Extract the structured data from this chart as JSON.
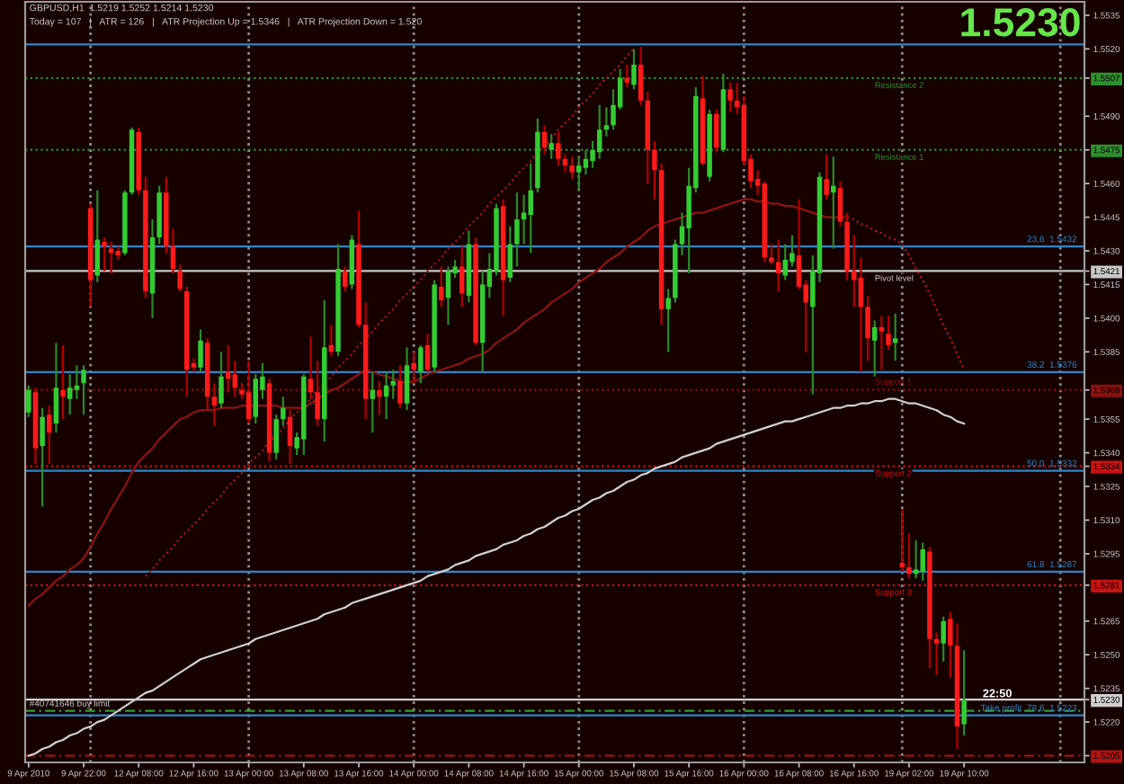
{
  "chart_data": {
    "type": "candlestick",
    "title": "GBPUSD,H1  1.5219 1.5252 1.5214 1.5230",
    "subtitle": "Today = 107   |   ATR = 126   |   ATR Projection Up = 1.5346   |   ATR Projection Down = 1.520",
    "categories": [
      "9 Apr 2010",
      null,
      null,
      null,
      null,
      null,
      null,
      null,
      "9 Apr 22:00",
      null,
      null,
      null,
      null,
      null,
      null,
      null,
      "12 Apr 08:00",
      null,
      null,
      null,
      null,
      null,
      null,
      null,
      "12 Apr 16:00",
      null,
      null,
      null,
      null,
      null,
      null,
      null,
      "13 Apr 00:00",
      null,
      null,
      null,
      null,
      null,
      null,
      null,
      "13 Apr 08:00",
      null,
      null,
      null,
      null,
      null,
      null,
      null,
      "13 Apr 16:00",
      null,
      null,
      null,
      null,
      null,
      null,
      null,
      "14 Apr 00:00",
      null,
      null,
      null,
      null,
      null,
      null,
      null,
      "14 Apr 08:00",
      null,
      null,
      null,
      null,
      null,
      null,
      null,
      "14 Apr 16:00",
      null,
      null,
      null,
      null,
      null,
      null,
      null,
      "15 Apr 00:00",
      null,
      null,
      null,
      null,
      null,
      null,
      null,
      "15 Apr 08:00",
      null,
      null,
      null,
      null,
      null,
      null,
      null,
      "15 Apr 16:00",
      null,
      null,
      null,
      null,
      null,
      null,
      null,
      "16 Apr 00:00",
      null,
      null,
      null,
      null,
      null,
      null,
      null,
      "16 Apr 08:00",
      null,
      null,
      null,
      null,
      null,
      null,
      null,
      "16 Apr 16:00",
      null,
      null,
      null,
      null,
      null,
      null,
      null,
      "19 Apr 02:00",
      null,
      null,
      null,
      null,
      null,
      null,
      null,
      "19 Apr 10:00",
      null,
      null,
      null,
      null,
      null,
      null,
      null,
      null,
      null,
      null,
      null,
      null,
      null,
      null,
      null,
      null,
      null
    ],
    "ohlc": [
      [
        1.5358,
        1.537,
        1.5356,
        1.5368
      ],
      [
        1.5367,
        1.5369,
        1.5335,
        1.5342
      ],
      [
        1.5343,
        1.536,
        1.5316,
        1.5356
      ],
      [
        1.5357,
        1.5361,
        1.5335,
        1.5349
      ],
      [
        1.5353,
        1.5389,
        1.5349,
        1.5369
      ],
      [
        1.5368,
        1.5388,
        1.5355,
        1.5365
      ],
      [
        1.5364,
        1.5375,
        1.5357,
        1.5369
      ],
      [
        1.5368,
        1.5379,
        1.5364,
        1.537
      ],
      [
        1.5371,
        1.5379,
        1.5357,
        1.5377
      ],
      [
        1.5449,
        1.5451,
        1.5405,
        1.5417
      ],
      [
        1.5419,
        1.5457,
        1.5416,
        1.5435
      ],
      [
        1.5434,
        1.5436,
        1.5421,
        1.5432
      ],
      [
        1.5431,
        1.5434,
        1.542,
        1.5429
      ],
      [
        1.543,
        1.5432,
        1.5426,
        1.5428
      ],
      [
        1.5429,
        1.5457,
        1.5428,
        1.5456
      ],
      [
        1.5456,
        1.5485,
        1.5455,
        1.5484
      ],
      [
        1.5483,
        1.5485,
        1.5455,
        1.5457
      ],
      [
        1.5457,
        1.5463,
        1.5409,
        1.5412
      ],
      [
        1.5411,
        1.5444,
        1.54,
        1.5436
      ],
      [
        1.5436,
        1.5459,
        1.5433,
        1.5456
      ],
      [
        1.5456,
        1.5463,
        1.5429,
        1.5432
      ],
      [
        1.5432,
        1.544,
        1.542,
        1.5422
      ],
      [
        1.5421,
        1.5424,
        1.5412,
        1.5413
      ],
      [
        1.5412,
        1.5414,
        1.5365,
        1.5377
      ],
      [
        1.538,
        1.5382,
        1.5376,
        1.5378
      ],
      [
        1.5378,
        1.5395,
        1.5376,
        1.539
      ],
      [
        1.5389,
        1.5391,
        1.5359,
        1.5365
      ],
      [
        1.5365,
        1.5371,
        1.5352,
        1.5361
      ],
      [
        1.5362,
        1.5385,
        1.536,
        1.5374
      ],
      [
        1.5376,
        1.5388,
        1.5367,
        1.5373
      ],
      [
        1.5375,
        1.5381,
        1.5365,
        1.5369
      ],
      [
        1.5368,
        1.5371,
        1.5364,
        1.5366
      ],
      [
        1.5367,
        1.5381,
        1.5353,
        1.5355
      ],
      [
        1.5356,
        1.5375,
        1.5353,
        1.5373
      ],
      [
        1.5368,
        1.538,
        1.5364,
        1.5374
      ],
      [
        1.5371,
        1.5373,
        1.5336,
        1.534
      ],
      [
        1.534,
        1.5357,
        1.5337,
        1.5355
      ],
      [
        1.5355,
        1.5365,
        1.5352,
        1.536
      ],
      [
        1.5356,
        1.5359,
        1.5335,
        1.5343
      ],
      [
        1.5342,
        1.5349,
        1.5339,
        1.5347
      ],
      [
        1.5346,
        1.5375,
        1.5339,
        1.5374
      ],
      [
        1.5373,
        1.5392,
        1.5364,
        1.5367
      ],
      [
        1.5367,
        1.5381,
        1.5352,
        1.5355
      ],
      [
        1.5355,
        1.5408,
        1.5345,
        1.5387
      ],
      [
        1.5388,
        1.5397,
        1.5383,
        1.5385
      ],
      [
        1.5385,
        1.5433,
        1.5383,
        1.5422
      ],
      [
        1.5421,
        1.5423,
        1.5412,
        1.5414
      ],
      [
        1.5415,
        1.5437,
        1.5413,
        1.5435
      ],
      [
        1.5433,
        1.5448,
        1.5396,
        1.5397
      ],
      [
        1.5397,
        1.5407,
        1.5355,
        1.5364
      ],
      [
        1.5364,
        1.5376,
        1.5349,
        1.5368
      ],
      [
        1.5368,
        1.5372,
        1.5357,
        1.5365
      ],
      [
        1.5365,
        1.5376,
        1.5355,
        1.537
      ],
      [
        1.537,
        1.5377,
        1.5364,
        1.5372
      ],
      [
        1.5372,
        1.5379,
        1.536,
        1.5362
      ],
      [
        1.5362,
        1.5387,
        1.5359,
        1.5379
      ],
      [
        1.538,
        1.5385,
        1.5371,
        1.5377
      ],
      [
        1.5376,
        1.5388,
        1.5371,
        1.5387
      ],
      [
        1.5388,
        1.5393,
        1.5376,
        1.5377
      ],
      [
        1.5378,
        1.5417,
        1.5376,
        1.5415
      ],
      [
        1.5414,
        1.5423,
        1.5405,
        1.5408
      ],
      [
        1.5409,
        1.5423,
        1.5397,
        1.5421
      ],
      [
        1.542,
        1.5426,
        1.5418,
        1.5423
      ],
      [
        1.5423,
        1.5432,
        1.5405,
        1.5411
      ],
      [
        1.541,
        1.5439,
        1.5407,
        1.5433
      ],
      [
        1.5433,
        1.5436,
        1.5388,
        1.5389
      ],
      [
        1.5389,
        1.5421,
        1.5376,
        1.5415
      ],
      [
        1.5414,
        1.5429,
        1.5409,
        1.5422
      ],
      [
        1.5421,
        1.5451,
        1.5419,
        1.5449
      ],
      [
        1.545,
        1.5453,
        1.5401,
        1.5417
      ],
      [
        1.5418,
        1.5441,
        1.5416,
        1.5433
      ],
      [
        1.5433,
        1.5456,
        1.5423,
        1.5444
      ],
      [
        1.5444,
        1.5455,
        1.5433,
        1.5447
      ],
      [
        1.5446,
        1.5469,
        1.5429,
        1.5457
      ],
      [
        1.5458,
        1.5489,
        1.5456,
        1.5483
      ],
      [
        1.5483,
        1.5486,
        1.5473,
        1.5476
      ],
      [
        1.5475,
        1.5482,
        1.5471,
        1.5478
      ],
      [
        1.5478,
        1.5483,
        1.5468,
        1.5471
      ],
      [
        1.5471,
        1.5473,
        1.5465,
        1.5468
      ],
      [
        1.5468,
        1.5472,
        1.5462,
        1.5465
      ],
      [
        1.5465,
        1.5472,
        1.5457,
        1.5468
      ],
      [
        1.5467,
        1.5475,
        1.5464,
        1.5471
      ],
      [
        1.547,
        1.5479,
        1.5467,
        1.5475
      ],
      [
        1.5474,
        1.5495,
        1.5471,
        1.5484
      ],
      [
        1.5484,
        1.5494,
        1.5481,
        1.5486
      ],
      [
        1.5486,
        1.5502,
        1.5484,
        1.5495
      ],
      [
        1.5494,
        1.5511,
        1.5493,
        1.5507
      ],
      [
        1.5507,
        1.5513,
        1.5503,
        1.5505
      ],
      [
        1.5504,
        1.552,
        1.5502,
        1.5513
      ],
      [
        1.5513,
        1.5521,
        1.5495,
        1.5497
      ],
      [
        1.5497,
        1.5501,
        1.546,
        1.5475
      ],
      [
        1.5475,
        1.5479,
        1.5453,
        1.5466
      ],
      [
        1.5466,
        1.5469,
        1.5397,
        1.5404
      ],
      [
        1.5404,
        1.5413,
        1.5385,
        1.5409
      ],
      [
        1.5409,
        1.5435,
        1.5407,
        1.5433
      ],
      [
        1.5433,
        1.5447,
        1.5428,
        1.5441
      ],
      [
        1.544,
        1.5467,
        1.542,
        1.5459
      ],
      [
        1.5458,
        1.5503,
        1.5456,
        1.5499
      ],
      [
        1.5498,
        1.5508,
        1.5468,
        1.5469
      ],
      [
        1.5463,
        1.5493,
        1.5461,
        1.5491
      ],
      [
        1.5491,
        1.5493,
        1.5474,
        1.5476
      ],
      [
        1.5475,
        1.5509,
        1.5474,
        1.5502
      ],
      [
        1.5502,
        1.5505,
        1.5492,
        1.5497
      ],
      [
        1.5497,
        1.5505,
        1.5491,
        1.5494
      ],
      [
        1.5495,
        1.5499,
        1.5468,
        1.547
      ],
      [
        1.5471,
        1.5473,
        1.5458,
        1.5461
      ],
      [
        1.5462,
        1.5466,
        1.5455,
        1.5459
      ],
      [
        1.546,
        1.5461,
        1.5425,
        1.5427
      ],
      [
        1.5427,
        1.5433,
        1.5424,
        1.5425
      ],
      [
        1.5425,
        1.5435,
        1.5412,
        1.542
      ],
      [
        1.5419,
        1.5433,
        1.5417,
        1.5426
      ],
      [
        1.5425,
        1.5437,
        1.5423,
        1.5429
      ],
      [
        1.5428,
        1.5453,
        1.5413,
        1.5414
      ],
      [
        1.5415,
        1.5417,
        1.5385,
        1.5407
      ],
      [
        1.5405,
        1.5428,
        1.5366,
        1.5421
      ],
      [
        1.542,
        1.5465,
        1.5416,
        1.5463
      ],
      [
        1.5462,
        1.5473,
        1.5453,
        1.5455
      ],
      [
        1.5456,
        1.5472,
        1.5431,
        1.5459
      ],
      [
        1.5458,
        1.5461,
        1.5441,
        1.5443
      ],
      [
        1.5443,
        1.5447,
        1.5417,
        1.5421
      ],
      [
        1.5421,
        1.5437,
        1.5405,
        1.5417
      ],
      [
        1.5418,
        1.5427,
        1.5376,
        1.5405
      ],
      [
        1.5405,
        1.541,
        1.5381,
        1.5391
      ],
      [
        1.539,
        1.5399,
        1.5374,
        1.5396
      ],
      [
        1.5396,
        1.5401,
        1.5377,
        1.5394
      ],
      [
        1.5393,
        1.5401,
        1.5386,
        1.5388
      ],
      [
        1.5389,
        1.5402,
        1.5381,
        1.5391
      ],
      [
        1.5291,
        1.5315,
        1.5287,
        1.5289
      ],
      [
        1.5289,
        1.5304,
        1.5284,
        1.5286
      ],
      [
        1.5286,
        1.5301,
        1.5284,
        1.5288
      ],
      [
        1.5287,
        1.53,
        1.5283,
        1.5297
      ],
      [
        1.5296,
        1.5298,
        1.5244,
        1.5257
      ],
      [
        1.5257,
        1.526,
        1.5241,
        1.5255
      ],
      [
        1.5255,
        1.5267,
        1.5247,
        1.5265
      ],
      [
        1.5266,
        1.5269,
        1.524,
        1.5254
      ],
      [
        1.5254,
        1.5264,
        1.5208,
        1.5218
      ],
      [
        1.5219,
        1.5252,
        1.5214,
        1.523
      ],
      null,
      null,
      null,
      null,
      null,
      null,
      null,
      null,
      null,
      null,
      null,
      null,
      null,
      null,
      null,
      null,
      null
    ],
    "series": [
      {
        "type": "line",
        "color": "#8c1414",
        "line_style": "solid",
        "values": [
          1.5272,
          1.5275,
          1.5277,
          1.528,
          1.5283,
          1.5285,
          1.5288,
          1.529,
          1.5293,
          1.5298,
          1.5304,
          1.5309,
          1.5315,
          1.532,
          1.5325,
          1.5331,
          1.5336,
          1.5339,
          1.5342,
          1.5346,
          1.5349,
          1.5352,
          1.5355,
          1.5356,
          1.5358,
          1.5359,
          1.5359,
          1.5359,
          1.536,
          1.536,
          1.536,
          1.5361,
          1.5361,
          1.5361,
          1.5361,
          1.5361,
          1.5361,
          1.536,
          1.536,
          1.536,
          1.536,
          1.5362,
          1.5364,
          1.5366,
          1.5368,
          1.5369,
          1.5371,
          1.5373,
          1.5375,
          1.5377,
          1.5376,
          1.5375,
          1.5374,
          1.5373,
          1.5372,
          1.5371,
          1.5372,
          1.5373,
          1.5375,
          1.5376,
          1.5377,
          1.5378,
          1.5379,
          1.538,
          1.5382,
          1.5383,
          1.5384,
          1.5386,
          1.5389,
          1.5391,
          1.5393,
          1.5395,
          1.5398,
          1.54,
          1.5402,
          1.5404,
          1.5407,
          1.5409,
          1.5411,
          1.5413,
          1.5416,
          1.5418,
          1.542,
          1.5422,
          1.5425,
          1.5427,
          1.5429,
          1.5432,
          1.5434,
          1.5436,
          1.5439,
          1.5441,
          1.5442,
          1.5443,
          1.5444,
          1.5445,
          1.5446,
          1.5447,
          1.5447,
          1.5448,
          1.5449,
          1.545,
          1.5451,
          1.5452,
          1.5453,
          1.5453,
          1.5452,
          1.5452,
          1.5451,
          1.5451,
          1.545,
          1.545,
          1.5449,
          1.5448,
          1.5447,
          1.5446,
          1.5445,
          1.5445,
          1.5445,
          1.5445,
          null,
          null,
          null,
          null,
          null,
          null,
          null,
          null,
          null,
          null,
          null,
          null,
          null,
          null,
          null,
          null,
          null,
          null,
          null,
          null,
          null,
          null,
          null,
          null,
          null,
          null,
          null,
          null,
          null,
          null,
          null,
          null,
          null,
          null
        ]
      },
      {
        "type": "line",
        "color": "#b01818",
        "line_style": "dotted",
        "values": [
          null,
          null,
          null,
          null,
          null,
          null,
          null,
          null,
          null,
          null,
          null,
          null,
          null,
          null,
          null,
          null,
          null,
          null,
          null,
          null,
          null,
          null,
          null,
          null,
          null,
          null,
          null,
          null,
          null,
          null,
          null,
          null,
          null,
          null,
          null,
          null,
          null,
          null,
          null,
          null,
          null,
          null,
          null,
          null,
          null,
          null,
          null,
          null,
          null,
          null,
          null,
          null,
          null,
          null,
          null,
          null,
          null,
          null,
          null,
          null,
          null,
          null,
          null,
          null,
          null,
          null,
          null,
          null,
          null,
          null,
          null,
          null,
          null,
          null,
          null,
          null,
          null,
          null,
          null,
          null,
          null,
          null,
          null,
          null,
          null,
          null,
          null,
          null,
          null,
          null,
          null,
          null,
          null,
          null,
          null,
          null,
          null,
          null,
          null,
          null,
          null,
          null,
          null,
          null,
          null,
          null,
          null,
          null,
          null,
          null,
          null,
          null,
          null,
          null,
          null,
          null,
          null,
          null,
          null,
          1.5445,
          1.5444,
          1.5442,
          1.5441,
          1.5439,
          1.5438,
          1.5436,
          1.5435,
          1.5433,
          1.5428,
          1.5422,
          1.5417,
          1.5411,
          1.5404,
          1.5397,
          1.5391,
          1.5384,
          1.5377,
          null,
          null,
          null,
          null,
          null,
          null,
          null,
          null,
          null,
          null,
          null,
          null,
          null,
          null,
          null,
          null,
          null
        ]
      },
      {
        "type": "line",
        "color": "#a01818",
        "line_style": "dotted",
        "values": [
          null,
          null,
          null,
          null,
          null,
          null,
          null,
          null,
          null,
          null,
          null,
          null,
          null,
          null,
          null,
          null,
          null,
          1.5285,
          1.5288,
          1.5292,
          1.5295,
          1.5298,
          1.5302,
          1.5305,
          1.5308,
          1.5311,
          1.5315,
          1.5318,
          1.5321,
          1.5325,
          1.5328,
          1.5331,
          1.5335,
          1.5338,
          1.5341,
          1.5345,
          1.5348,
          1.5351,
          1.5355,
          1.5358,
          1.5361,
          1.5364,
          1.5368,
          1.5371,
          1.5374,
          1.5378,
          1.5381,
          1.5384,
          1.5388,
          1.5391,
          1.5394,
          1.5398,
          1.5401,
          1.5404,
          1.5408,
          1.5411,
          1.5414,
          1.5417,
          1.5421,
          1.5424,
          1.5427,
          1.5431,
          1.5434,
          1.5437,
          1.5441,
          1.5444,
          1.5447,
          1.5451,
          1.5454,
          1.5457,
          1.546,
          1.5464,
          1.5467,
          1.547,
          1.5474,
          1.5477,
          1.548,
          1.5484,
          1.5487,
          1.549,
          1.5494,
          1.5497,
          1.55,
          1.5504,
          1.5507,
          1.551,
          1.5513,
          1.5517,
          1.552,
          null,
          null,
          null,
          null,
          null,
          null,
          null,
          null,
          null,
          null,
          null,
          null,
          null,
          null,
          null,
          null,
          null,
          null,
          null,
          null,
          null,
          null,
          null,
          null,
          null,
          null,
          null,
          null,
          null,
          null,
          null,
          null,
          null,
          null,
          null,
          null,
          null,
          null,
          null,
          null,
          null,
          null,
          null,
          null,
          null,
          null,
          null,
          null,
          null,
          null,
          null,
          null,
          null,
          null,
          null,
          null,
          null,
          null,
          null,
          null,
          null,
          null,
          null,
          null,
          null
        ]
      },
      {
        "type": "line",
        "color": "#d0d0d0",
        "line_style": "solid",
        "values": [
          1.5205,
          1.5206,
          1.5208,
          1.5209,
          1.5211,
          1.5212,
          1.5214,
          1.5215,
          1.5217,
          1.5218,
          1.522,
          1.5221,
          1.5223,
          1.5225,
          1.5227,
          1.5229,
          1.5231,
          1.5233,
          1.5234,
          1.5236,
          1.5238,
          1.524,
          1.5242,
          1.5244,
          1.5246,
          1.5248,
          1.5249,
          1.525,
          1.5251,
          1.5252,
          1.5253,
          1.5254,
          1.5255,
          1.5257,
          1.5258,
          1.5259,
          1.526,
          1.5261,
          1.5262,
          1.5263,
          1.5264,
          1.5265,
          1.5266,
          1.5268,
          1.5269,
          1.527,
          1.5271,
          1.5273,
          1.5274,
          1.5275,
          1.5276,
          1.5277,
          1.5278,
          1.5279,
          1.528,
          1.5281,
          1.5282,
          1.5283,
          1.5285,
          1.5286,
          1.5287,
          1.5288,
          1.529,
          1.5291,
          1.5292,
          1.5294,
          1.5295,
          1.5296,
          1.5297,
          1.5299,
          1.53,
          1.5301,
          1.5303,
          1.5304,
          1.5306,
          1.5307,
          1.5309,
          1.5311,
          1.5312,
          1.5314,
          1.5315,
          1.5317,
          1.5319,
          1.532,
          1.5322,
          1.5323,
          1.5325,
          1.5327,
          1.5328,
          1.533,
          1.5331,
          1.5333,
          1.5334,
          1.5335,
          1.5336,
          1.5338,
          1.5339,
          1.534,
          1.5341,
          1.5342,
          1.5344,
          1.5345,
          1.5346,
          1.5347,
          1.5348,
          1.5349,
          1.535,
          1.5351,
          1.5352,
          1.5353,
          1.5354,
          1.5354,
          1.5355,
          1.5356,
          1.5357,
          1.5358,
          1.5359,
          1.536,
          1.536,
          1.5361,
          1.5361,
          1.5362,
          1.5362,
          1.5363,
          1.5363,
          1.5364,
          1.5364,
          1.5363,
          1.5362,
          1.5362,
          1.5361,
          1.536,
          1.5359,
          1.5357,
          1.5356,
          1.5354,
          1.5353,
          null,
          null,
          null,
          null,
          null,
          null,
          null,
          null,
          null,
          null,
          null,
          null,
          null,
          null,
          null,
          null,
          null
        ]
      }
    ],
    "ref_lines": [
      {
        "axis": "y",
        "value": 1.5522,
        "color": "#2e86c8"
      },
      {
        "axis": "y",
        "value": 1.5432,
        "label": "23.6  1.5432",
        "color": "#2e86c8"
      },
      {
        "axis": "y",
        "value": 1.5376,
        "label": "38.2  1.5376",
        "color": "#2e86c8"
      },
      {
        "axis": "y",
        "value": 1.5332,
        "label": "50.0  1.5332",
        "color": "#2e86c8"
      },
      {
        "axis": "y",
        "value": 1.5287,
        "label": "61.8  1.5287",
        "color": "#2e86c8"
      },
      {
        "axis": "y",
        "value": 1.5223,
        "label": "Take profit  78.6  1.5223",
        "color": "#2e86c8"
      },
      {
        "axis": "y",
        "value": 1.5507,
        "label": "Resistance 2",
        "color": "#2f8f2f",
        "line_style": "dotted"
      },
      {
        "axis": "y",
        "value": 1.5475,
        "label": "Resistance 1",
        "color": "#2f8f2f",
        "line_style": "dotted"
      },
      {
        "axis": "y",
        "value": 1.5421,
        "label": "Pivot level",
        "color": "#c8c8c8"
      },
      {
        "axis": "y",
        "value": 1.5368,
        "label": "Support 1",
        "color": "#8b1010",
        "line_style": "dotted"
      },
      {
        "axis": "y",
        "value": 1.5334,
        "label": "Support 2",
        "color": "#c81414",
        "line_style": "dotted"
      },
      {
        "axis": "y",
        "value": 1.5281,
        "label": "Support 3",
        "color": "#c81414",
        "line_style": "dotted"
      },
      {
        "axis": "y",
        "value": 1.523,
        "color": "#d0d0d0"
      },
      {
        "axis": "y",
        "value": 1.5225,
        "label": "#40741646 buy limit",
        "color": "#2fa02f",
        "line_style": "dashed"
      },
      {
        "axis": "y",
        "value": 1.5205,
        "color": "#b01414",
        "line_style": "dashed"
      }
    ],
    "annotations": [
      "1.5230",
      {
        "text": "22:50",
        "y": 1.523
      }
    ],
    "ylim": [
      1.5202,
      1.5541
    ],
    "yticks": [
      1.5205,
      {
        "value": 1.522,
        "label": "1.5220"
      },
      {
        "value": 1.523,
        "label": "1.5230"
      },
      1.5235,
      {
        "value": 1.525,
        "label": "1.5250"
      },
      1.5265,
      1.5281,
      1.5295,
      {
        "value": 1.531,
        "label": "1.5310"
      },
      1.5325,
      1.5334,
      {
        "value": 1.534,
        "label": "1.5340"
      },
      1.5355,
      1.5368,
      1.5385,
      {
        "value": 1.54,
        "label": "1.5400"
      },
      1.5415,
      1.5421,
      {
        "value": 1.543,
        "label": "1.5430"
      },
      1.5445,
      {
        "value": 1.546,
        "label": "1.5460"
      },
      1.5475,
      {
        "value": 1.549,
        "label": "1.5490"
      },
      1.5507,
      {
        "value": 1.552,
        "label": "1.5520"
      },
      1.5535
    ]
  }
}
